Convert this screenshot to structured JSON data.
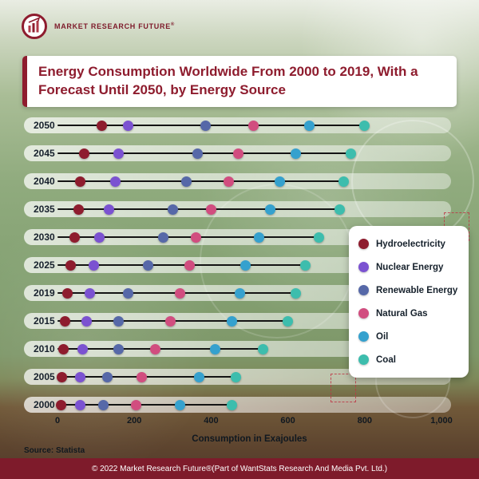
{
  "logo": {
    "name": "Market Research Future",
    "reg": "®"
  },
  "title": "Energy Consumption Worldwide From 2000 to 2019, With a Forecast Until 2050, by Energy Source",
  "source": "Source: Statista",
  "footer": "© 2022 Market Research Future®(Part of WantStats Research And Media Pvt. Ltd.)",
  "colors": {
    "accent": "#8E1C2E",
    "footer_bg": "#7E1B2B",
    "row_line": "#141414",
    "track": "rgba(255,255,255,0.6)"
  },
  "chart_data": {
    "type": "scatter",
    "title": "Energy Consumption Worldwide From 2000 to 2019, With a Forecast Until 2050, by Energy Source",
    "xlabel": "Consumption in Exajoules",
    "xlim": [
      0,
      1000
    ],
    "grid": false,
    "legend_position": "right",
    "xticks": [
      {
        "label": "0",
        "value": 0
      },
      {
        "label": "200",
        "value": 200
      },
      {
        "label": "400",
        "value": 400
      },
      {
        "label": "600",
        "value": 600
      },
      {
        "label": "800",
        "value": 800
      },
      {
        "label": "1,000",
        "value": 1000
      }
    ],
    "categories": [
      "2050",
      "2045",
      "2040",
      "2035",
      "2030",
      "2025",
      "2019",
      "2015",
      "2010",
      "2005",
      "2000"
    ],
    "series": [
      {
        "name": "Hydroelectricity",
        "color": "#8E1C2E",
        "values": [
          115,
          70,
          60,
          55,
          45,
          35,
          25,
          20,
          15,
          12,
          10
        ]
      },
      {
        "name": "Nuclear Energy",
        "color": "#7B52D1",
        "values": [
          185,
          160,
          150,
          135,
          110,
          95,
          85,
          75,
          65,
          60,
          60
        ]
      },
      {
        "name": "Renewable Energy",
        "color": "#5668A8",
        "values": [
          385,
          365,
          335,
          300,
          275,
          235,
          185,
          160,
          160,
          130,
          120
        ]
      },
      {
        "name": "Natural Gas",
        "color": "#D14D7F",
        "values": [
          510,
          470,
          445,
          400,
          360,
          345,
          320,
          295,
          255,
          220,
          205
        ]
      },
      {
        "name": "Oil",
        "color": "#35A1CE",
        "values": [
          655,
          620,
          580,
          555,
          525,
          490,
          475,
          455,
          410,
          370,
          320
        ]
      },
      {
        "name": "Coal",
        "color": "#3DBDAD",
        "values": [
          800,
          765,
          745,
          735,
          680,
          645,
          620,
          600,
          535,
          465,
          455
        ]
      }
    ]
  }
}
